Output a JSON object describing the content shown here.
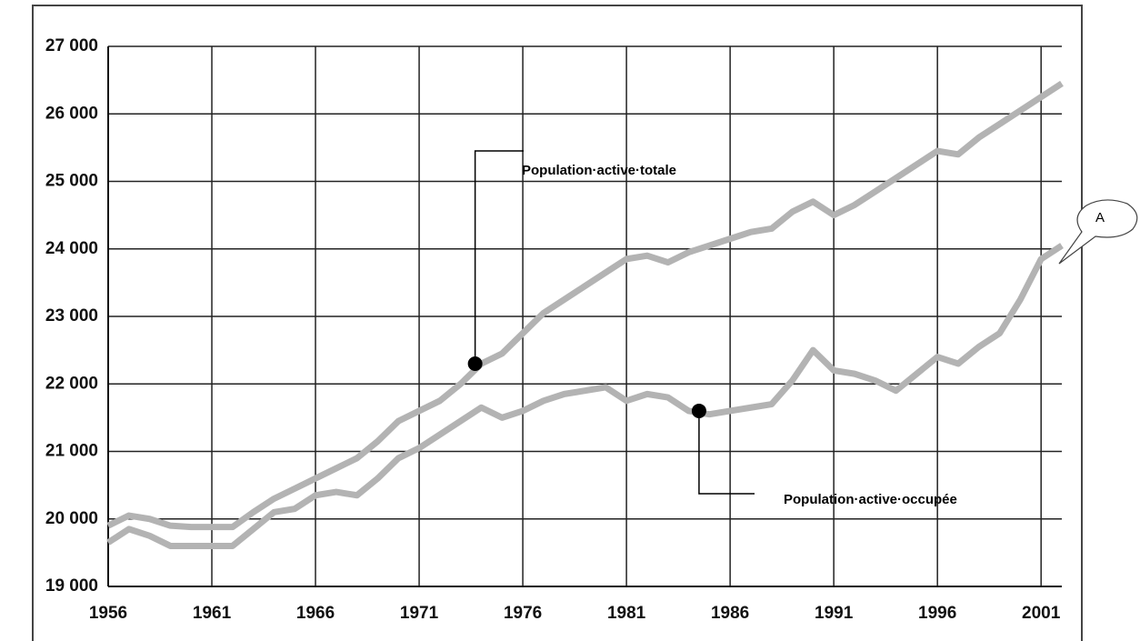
{
  "chart_data": {
    "type": "line",
    "x": [
      1956,
      1957,
      1958,
      1959,
      1960,
      1961,
      1962,
      1963,
      1964,
      1965,
      1966,
      1967,
      1968,
      1969,
      1970,
      1971,
      1972,
      1973,
      1974,
      1975,
      1976,
      1977,
      1978,
      1979,
      1980,
      1981,
      1982,
      1983,
      1984,
      1985,
      1986,
      1987,
      1988,
      1989,
      1990,
      1991,
      1992,
      1993,
      1994,
      1995,
      1996,
      1997,
      1998,
      1999,
      2000,
      2001,
      2002
    ],
    "series": [
      {
        "name": "Population·active·totale",
        "color": "#b3b3b3",
        "values": [
          19900,
          20050,
          20000,
          19900,
          19880,
          19880,
          19880,
          20100,
          20300,
          20450,
          20600,
          20750,
          20900,
          21150,
          21450,
          21600,
          21750,
          22000,
          22300,
          22450,
          22750,
          23050,
          23250,
          23450,
          23650,
          23850,
          23900,
          23800,
          23950,
          24050,
          24150,
          24250,
          24300,
          24550,
          24700,
          24500,
          24650,
          24850,
          25050,
          25250,
          25450,
          25400,
          25650,
          25850,
          26050,
          26250,
          26450
        ]
      },
      {
        "name": "Population·active·occupée",
        "color": "#b3b3b3",
        "values": [
          19650,
          19850,
          19750,
          19600,
          19600,
          19600,
          19600,
          19850,
          20100,
          20150,
          20350,
          20400,
          20350,
          20600,
          20900,
          21050,
          21250,
          21450,
          21650,
          21500,
          21600,
          21750,
          21850,
          21900,
          21950,
          21750,
          21850,
          21800,
          21600,
          21550,
          21600,
          21650,
          21700,
          22050,
          22500,
          22200,
          22150,
          22050,
          21900,
          22150,
          22400,
          22300,
          22550,
          22750,
          23250,
          23850,
          24050
        ]
      }
    ],
    "annotation": "A",
    "xlim": [
      1956,
      2002
    ],
    "xticks": [
      1956,
      1961,
      1966,
      1971,
      1976,
      1981,
      1986,
      1991,
      1996,
      2001
    ],
    "ylim": [
      19000,
      27000
    ],
    "yticks": [
      {
        "value": 19000,
        "label": "19 000"
      },
      {
        "value": 20000,
        "label": "20 000"
      },
      {
        "value": 21000,
        "label": "21 000"
      },
      {
        "value": 22000,
        "label": "22 000"
      },
      {
        "value": 23000,
        "label": "23 000"
      },
      {
        "value": 24000,
        "label": "24 000"
      },
      {
        "value": 25000,
        "label": "25 000"
      },
      {
        "value": 26000,
        "label": "26 000"
      },
      {
        "value": 27000,
        "label": "27 000"
      }
    ],
    "grid": true
  }
}
